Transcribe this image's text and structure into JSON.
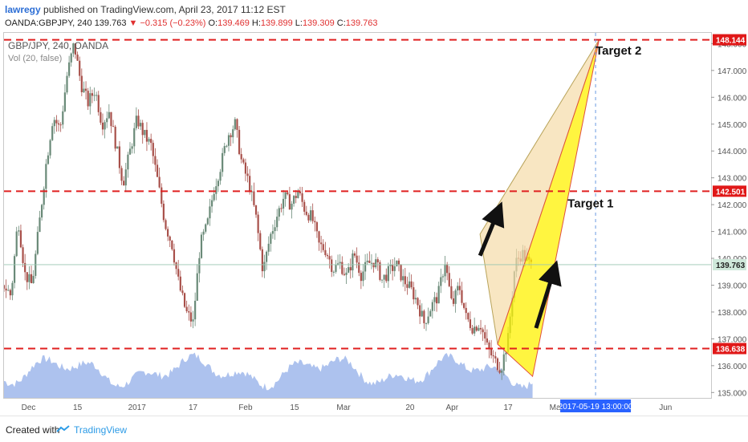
{
  "header": {
    "username": "lawregy",
    "published_text": " published on TradingView.com, April 23, 2017 11:12 EST"
  },
  "quote": {
    "symbol": "OANDA:GBPJPY, 240",
    "last": "139.763",
    "change": "▼ −0.315 (−0.23%)",
    "o_label": "O:",
    "o_value": "139.469",
    "h_label": "H:",
    "h_value": "139.899",
    "l_label": "L:",
    "l_value": "139.309",
    "c_label": "C:",
    "c_value": "139.763"
  },
  "legend": {
    "series": "GBP/JPY, 240, OANDA",
    "volume": "Vol (20, false)"
  },
  "footer": {
    "created_with": "Created with",
    "brand": "TradingView"
  },
  "colors": {
    "hline": "#e02020",
    "candle_up": "#6a8a78",
    "candle_down": "#a8504a",
    "volume": "#6a8fe0",
    "wedge_left": "#f5dca8",
    "wedge_right": "#fff200",
    "label_bg": "#e01818",
    "current_bg": "#cfe8da",
    "crosshair": "#6a9ae0",
    "date_label_bg": "#2962ff"
  },
  "chart_data": {
    "type": "candlestick",
    "symbol": "GBP/JPY",
    "timeframe": "240",
    "y_range": [
      134.8,
      148.4
    ],
    "y_ticks": [
      "135.000",
      "136.000",
      "137.000",
      "138.000",
      "139.000",
      "140.000",
      "141.000",
      "142.000",
      "143.000",
      "144.000",
      "145.000",
      "146.000",
      "147.000",
      "148.000"
    ],
    "x_ticks": [
      "Dec",
      "15",
      "2017",
      "17",
      "Feb",
      "15",
      "Mar",
      "20",
      "Apr",
      "17",
      "May",
      "Jun"
    ],
    "x_tick_days": [
      0,
      14,
      31,
      47,
      62,
      76,
      90,
      109,
      121,
      137,
      151,
      182
    ],
    "x_range_days": [
      -7,
      195
    ],
    "price_path": [
      [
        -7,
        139.0
      ],
      [
        -5,
        138.6
      ],
      [
        -3,
        141.5
      ],
      [
        -1,
        139.4
      ],
      [
        1,
        139.0
      ],
      [
        3,
        141.2
      ],
      [
        5,
        143.5
      ],
      [
        7,
        145.3
      ],
      [
        9,
        144.8
      ],
      [
        11,
        146.8
      ],
      [
        13,
        148.0
      ],
      [
        15,
        146.5
      ],
      [
        17,
        145.8
      ],
      [
        19,
        146.3
      ],
      [
        21,
        145.0
      ],
      [
        23,
        145.5
      ],
      [
        25,
        144.2
      ],
      [
        27,
        142.8
      ],
      [
        29,
        144.0
      ],
      [
        31,
        145.2
      ],
      [
        33,
        144.6
      ],
      [
        35,
        144.2
      ],
      [
        37,
        142.8
      ],
      [
        39,
        141.3
      ],
      [
        41,
        140.5
      ],
      [
        43,
        139.0
      ],
      [
        45,
        138.0
      ],
      [
        47,
        137.6
      ],
      [
        49,
        140.5
      ],
      [
        51,
        141.2
      ],
      [
        53,
        142.6
      ],
      [
        55,
        143.5
      ],
      [
        57,
        144.6
      ],
      [
        59,
        145.0
      ],
      [
        61,
        143.5
      ],
      [
        63,
        142.8
      ],
      [
        65,
        141.5
      ],
      [
        67,
        139.5
      ],
      [
        69,
        140.8
      ],
      [
        71,
        141.6
      ],
      [
        73,
        142.3
      ],
      [
        75,
        142.0
      ],
      [
        77,
        142.5
      ],
      [
        79,
        141.8
      ],
      [
        81,
        141.5
      ],
      [
        83,
        140.5
      ],
      [
        85,
        140.3
      ],
      [
        87,
        139.6
      ],
      [
        89,
        139.8
      ],
      [
        91,
        139.3
      ],
      [
        93,
        140.2
      ],
      [
        95,
        139.4
      ],
      [
        97,
        139.8
      ],
      [
        99,
        139.9
      ],
      [
        101,
        139.2
      ],
      [
        103,
        139.5
      ],
      [
        105,
        139.8
      ],
      [
        107,
        139.2
      ],
      [
        109,
        138.9
      ],
      [
        111,
        138.4
      ],
      [
        113,
        137.6
      ],
      [
        115,
        138.2
      ],
      [
        117,
        138.6
      ],
      [
        119,
        139.9
      ],
      [
        121,
        138.2
      ],
      [
        123,
        139.0
      ],
      [
        125,
        137.8
      ],
      [
        127,
        137.4
      ],
      [
        129,
        137.6
      ],
      [
        131,
        136.7
      ],
      [
        133,
        136.2
      ],
      [
        135,
        135.9
      ],
      [
        137,
        137.0
      ],
      [
        139,
        139.8
      ],
      [
        141,
        140.2
      ],
      [
        143,
        139.8
      ],
      [
        144,
        139.7
      ]
    ],
    "volume_area": "semi-transparent blue volume histogram along the bottom",
    "horizontal_levels": [
      {
        "label": "148.144",
        "value": 148.144
      },
      {
        "label": "142.501",
        "value": 142.501
      },
      {
        "label": "136.638",
        "value": 136.638
      }
    ],
    "current_price": {
      "label": "139.763",
      "value": 139.763
    },
    "annotations": [
      {
        "text": "Target 2",
        "at_day": 162,
        "price": 147.6
      },
      {
        "text": "Target 1",
        "at_day": 154,
        "price": 141.9
      }
    ],
    "projection_triangles": [
      {
        "points": [
          [
            129,
            140.9
          ],
          [
            134,
            136.8
          ],
          [
            163,
            148.144
          ]
        ],
        "fill": "wedge_left"
      },
      {
        "points": [
          [
            134,
            136.8
          ],
          [
            144,
            135.6
          ],
          [
            163,
            148.144
          ]
        ],
        "fill": "wedge_right"
      }
    ],
    "arrows": [
      {
        "from": [
          129,
          140.1
        ],
        "to": [
          134,
          141.7
        ]
      },
      {
        "from": [
          145,
          137.4
        ],
        "to": [
          150,
          139.5
        ]
      }
    ],
    "crosshair": {
      "day": 162,
      "label": "2017-05-19 13:00:00"
    }
  }
}
